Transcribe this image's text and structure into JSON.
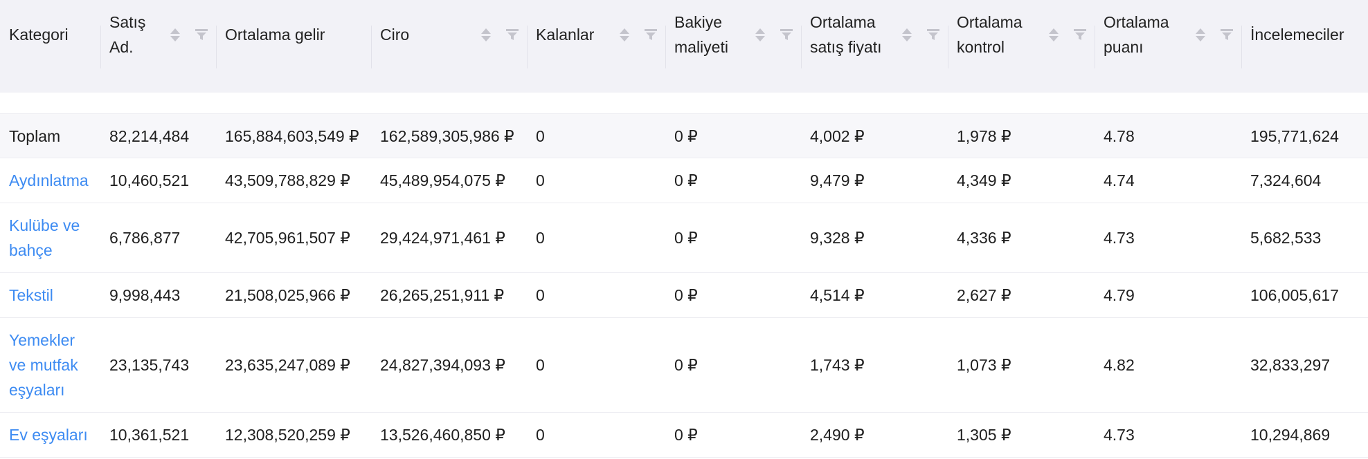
{
  "table": {
    "headers": [
      {
        "label": "Kategori",
        "sortable": false,
        "filterable": false
      },
      {
        "label": "Satış Ad.",
        "sortable": true,
        "filterable": true
      },
      {
        "label": "Ortalama gelir",
        "sortable": false,
        "filterable": false
      },
      {
        "label": "Ciro",
        "sortable": true,
        "filterable": true
      },
      {
        "label": "Kalanlar",
        "sortable": true,
        "filterable": true
      },
      {
        "label": "Bakiye maliyeti",
        "sortable": true,
        "filterable": true
      },
      {
        "label": "Ortalama satış fiyatı",
        "sortable": true,
        "filterable": true
      },
      {
        "label": "Ortalama kontrol",
        "sortable": true,
        "filterable": true
      },
      {
        "label": "Ortalama puanı",
        "sortable": true,
        "filterable": true
      },
      {
        "label": "İncelemeciler",
        "sortable": false,
        "filterable": false
      }
    ],
    "rows": [
      {
        "category": "Toplam",
        "is_link": false,
        "satis_ad": "82,214,484",
        "ortalama_gelir": "165,884,603,549 ₽",
        "ciro": "162,589,305,986 ₽",
        "kalanlar": "0",
        "bakiye_maliyeti": "0 ₽",
        "ort_satis_fiyati": "4,002 ₽",
        "ort_kontrol": "1,978 ₽",
        "ort_puani": "4.78",
        "incelemeciler": "195,771,624"
      },
      {
        "category": "Aydınlatma",
        "is_link": true,
        "satis_ad": "10,460,521",
        "ortalama_gelir": "43,509,788,829 ₽",
        "ciro": "45,489,954,075 ₽",
        "kalanlar": "0",
        "bakiye_maliyeti": "0 ₽",
        "ort_satis_fiyati": "9,479 ₽",
        "ort_kontrol": "4,349 ₽",
        "ort_puani": "4.74",
        "incelemeciler": "7,324,604"
      },
      {
        "category": "Kulübe ve bahçe",
        "is_link": true,
        "satis_ad": "6,786,877",
        "ortalama_gelir": "42,705,961,507 ₽",
        "ciro": "29,424,971,461 ₽",
        "kalanlar": "0",
        "bakiye_maliyeti": "0 ₽",
        "ort_satis_fiyati": "9,328 ₽",
        "ort_kontrol": "4,336 ₽",
        "ort_puani": "4.73",
        "incelemeciler": "5,682,533"
      },
      {
        "category": "Tekstil",
        "is_link": true,
        "satis_ad": "9,998,443",
        "ortalama_gelir": "21,508,025,966 ₽",
        "ciro": "26,265,251,911 ₽",
        "kalanlar": "0",
        "bakiye_maliyeti": "0 ₽",
        "ort_satis_fiyati": "4,514 ₽",
        "ort_kontrol": "2,627 ₽",
        "ort_puani": "4.79",
        "incelemeciler": "106,005,617"
      },
      {
        "category": "Yemekler ve mutfak eşyaları",
        "is_link": true,
        "satis_ad": "23,135,743",
        "ortalama_gelir": "23,635,247,089 ₽",
        "ciro": "24,827,394,093 ₽",
        "kalanlar": "0",
        "bakiye_maliyeti": "0 ₽",
        "ort_satis_fiyati": "1,743 ₽",
        "ort_kontrol": "1,073 ₽",
        "ort_puani": "4.82",
        "incelemeciler": "32,833,297"
      },
      {
        "category": "Ev eşyaları",
        "is_link": true,
        "satis_ad": "10,361,521",
        "ortalama_gelir": "12,308,520,259 ₽",
        "ciro": "13,526,460,850 ₽",
        "kalanlar": "0",
        "bakiye_maliyeti": "0 ₽",
        "ort_satis_fiyati": "2,490 ₽",
        "ort_kontrol": "1,305 ₽",
        "ort_puani": "4.73",
        "incelemeciler": "10,294,869"
      }
    ]
  },
  "icons": {
    "sort": "sort-arrows-icon",
    "filter": "funnel-filter-icon"
  },
  "colors": {
    "header_bg": "#f2f2f7",
    "link": "#3d8bf2",
    "icon": "#c4c4cc",
    "total_bg": "#f7f7fa"
  }
}
